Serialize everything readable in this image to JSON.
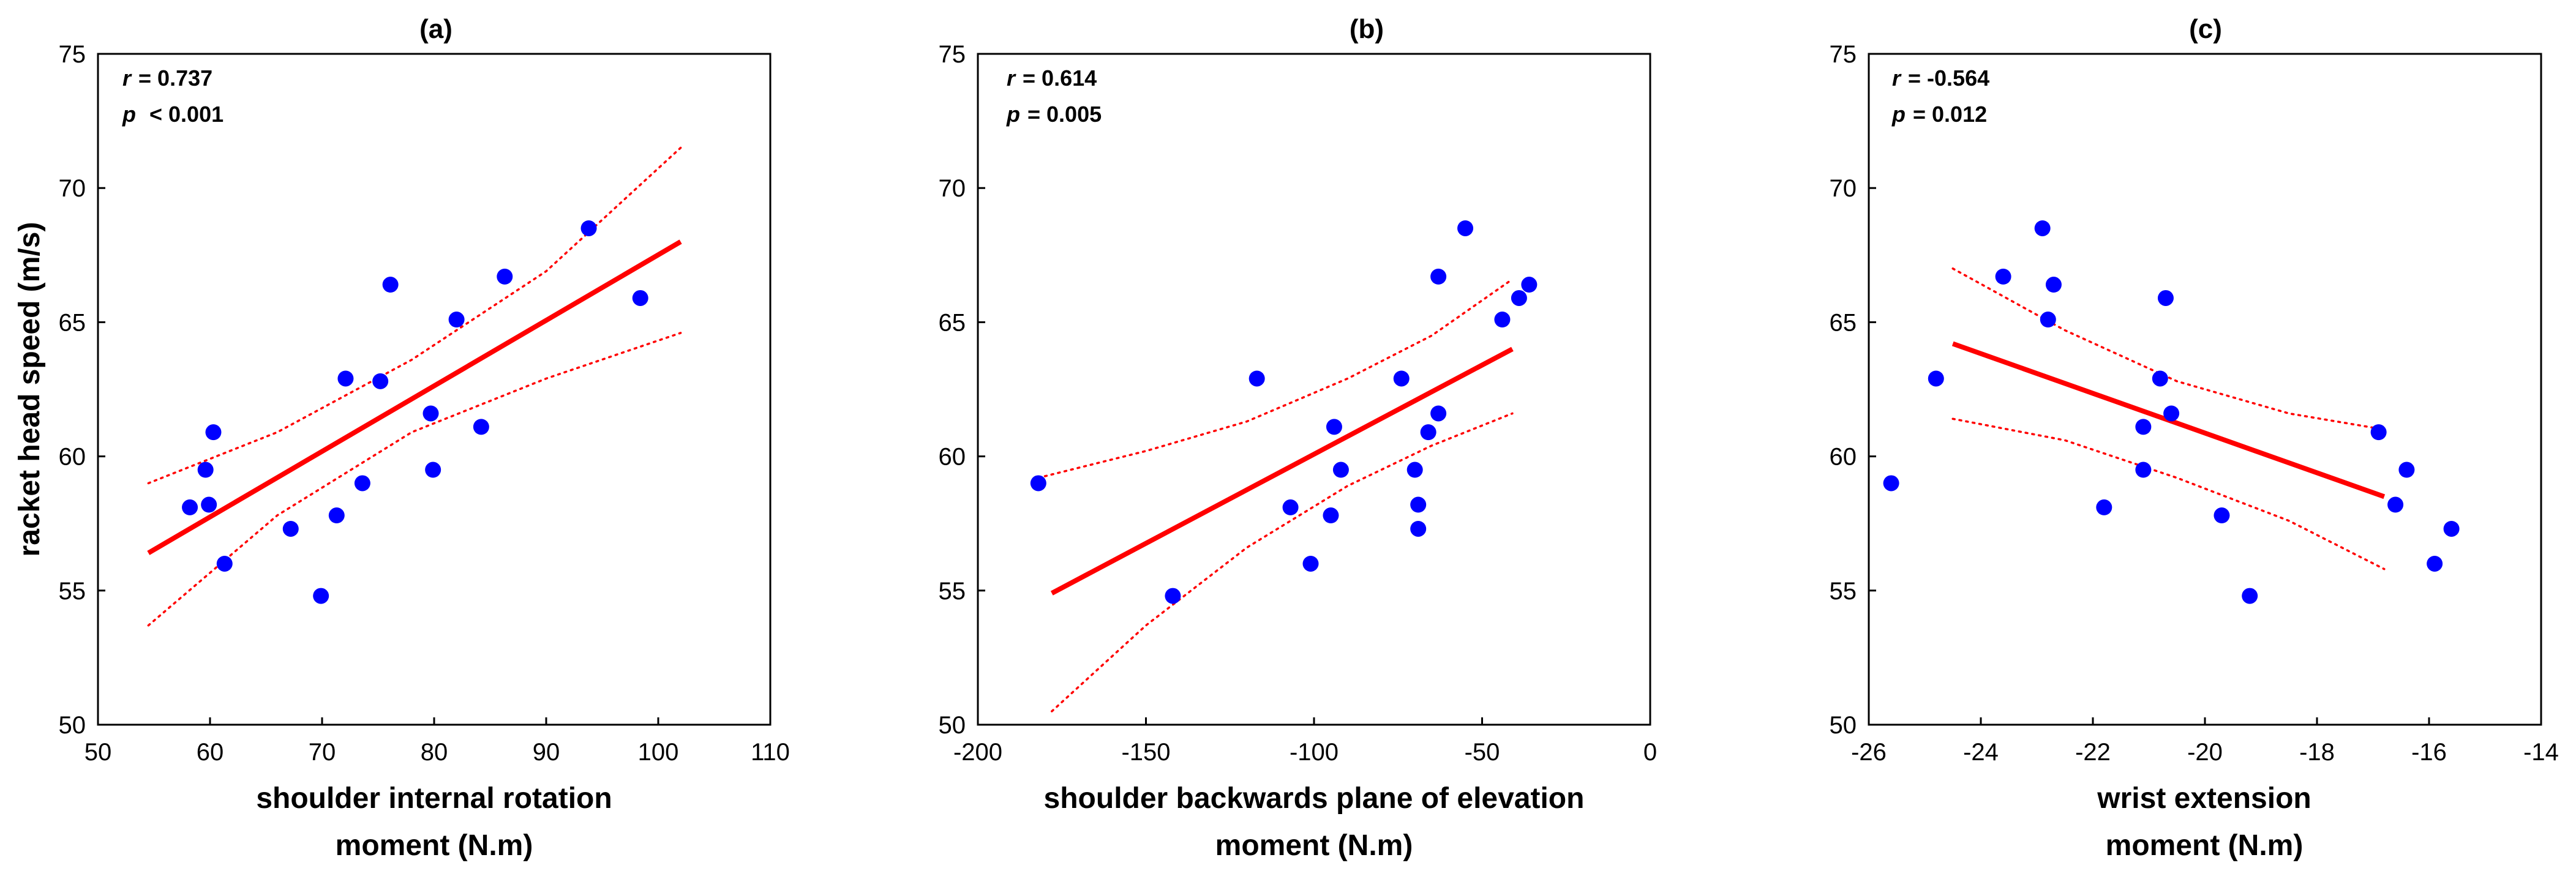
{
  "chart_data": [
    {
      "type": "scatter",
      "title": "(a)",
      "xlabel": [
        "shoulder internal rotation",
        "moment (N.m)"
      ],
      "ylabel": "racket head speed (m/s)",
      "xlim": [
        50,
        110
      ],
      "ylim": [
        50,
        75
      ],
      "xticks": [
        50,
        60,
        70,
        80,
        90,
        100,
        110
      ],
      "yticks": [
        50,
        55,
        60,
        65,
        70,
        75
      ],
      "stats": {
        "r_label": "r",
        "r_text": "= 0.737",
        "p_label": "p",
        "p_text": "< 0.001"
      },
      "points": [
        {
          "x": 58.2,
          "y": 58.1
        },
        {
          "x": 59.6,
          "y": 59.5
        },
        {
          "x": 59.9,
          "y": 58.2
        },
        {
          "x": 60.3,
          "y": 60.9
        },
        {
          "x": 61.3,
          "y": 56.0
        },
        {
          "x": 67.2,
          "y": 57.3
        },
        {
          "x": 69.9,
          "y": 54.8
        },
        {
          "x": 71.3,
          "y": 57.8
        },
        {
          "x": 72.1,
          "y": 62.9
        },
        {
          "x": 73.6,
          "y": 59.0
        },
        {
          "x": 75.2,
          "y": 62.8
        },
        {
          "x": 76.1,
          "y": 66.4
        },
        {
          "x": 79.7,
          "y": 61.6
        },
        {
          "x": 79.9,
          "y": 59.5
        },
        {
          "x": 82.0,
          "y": 65.1
        },
        {
          "x": 84.2,
          "y": 61.1
        },
        {
          "x": 86.3,
          "y": 66.7
        },
        {
          "x": 93.8,
          "y": 68.5
        },
        {
          "x": 98.4,
          "y": 65.9
        }
      ],
      "fit": {
        "x": [
          54.5,
          102.0
        ],
        "y": [
          56.4,
          68.0
        ]
      },
      "ci_upper": {
        "x": [
          54.5,
          66,
          78,
          90,
          102
        ],
        "y": [
          59.0,
          60.9,
          63.6,
          66.9,
          71.5
        ]
      },
      "ci_lower": {
        "x": [
          54.5,
          66,
          78,
          90,
          102
        ],
        "y": [
          53.7,
          57.8,
          60.9,
          62.9,
          64.6
        ]
      }
    },
    {
      "type": "scatter",
      "title": "(b)",
      "xlabel": [
        "shoulder backwards plane of elevation",
        "moment (N.m)"
      ],
      "ylabel": "",
      "xlim": [
        -200,
        0
      ],
      "ylim": [
        50,
        75
      ],
      "xticks": [
        -200,
        -150,
        -100,
        -50,
        0
      ],
      "yticks": [
        50,
        55,
        60,
        65,
        70,
        75
      ],
      "stats": {
        "r_label": "r",
        "r_text": "= 0.614",
        "p_label": "p",
        "p_text": "= 0.005"
      },
      "points": [
        {
          "x": -182,
          "y": 59.0
        },
        {
          "x": -142,
          "y": 54.8
        },
        {
          "x": -117,
          "y": 62.9
        },
        {
          "x": -107,
          "y": 58.1
        },
        {
          "x": -101,
          "y": 56.0
        },
        {
          "x": -95,
          "y": 57.8
        },
        {
          "x": -94,
          "y": 61.1
        },
        {
          "x": -92,
          "y": 59.5
        },
        {
          "x": -74,
          "y": 62.9
        },
        {
          "x": -70,
          "y": 59.5
        },
        {
          "x": -69,
          "y": 58.2
        },
        {
          "x": -69,
          "y": 57.3
        },
        {
          "x": -66,
          "y": 60.9
        },
        {
          "x": -63,
          "y": 61.6
        },
        {
          "x": -63,
          "y": 66.7
        },
        {
          "x": -55,
          "y": 68.5
        },
        {
          "x": -44,
          "y": 65.1
        },
        {
          "x": -39,
          "y": 65.9
        },
        {
          "x": -36,
          "y": 66.4
        }
      ],
      "fit": {
        "x": [
          -178,
          -41
        ],
        "y": [
          54.9,
          64.0
        ]
      },
      "ci_upper": {
        "x": [
          -182,
          -150,
          -120,
          -90,
          -65,
          -41
        ],
        "y": [
          59.2,
          60.2,
          61.3,
          62.9,
          64.5,
          66.6
        ]
      },
      "ci_lower": {
        "x": [
          -178,
          -150,
          -120,
          -90,
          -65,
          -41
        ],
        "y": [
          50.5,
          53.7,
          56.6,
          58.9,
          60.4,
          61.6
        ]
      }
    },
    {
      "type": "scatter",
      "title": "(c)",
      "xlabel": [
        "wrist extension",
        "moment (N.m)"
      ],
      "ylabel": "",
      "xlim": [
        -26,
        -14
      ],
      "ylim": [
        50,
        75
      ],
      "xticks": [
        -26,
        -24,
        -22,
        -20,
        -18,
        -16,
        -14
      ],
      "yticks": [
        50,
        55,
        60,
        65,
        70,
        75
      ],
      "stats": {
        "r_label": "r",
        "r_text": "= -0.564",
        "p_label": "p",
        "p_text": "= 0.012"
      },
      "points": [
        {
          "x": -25.6,
          "y": 59.0
        },
        {
          "x": -24.8,
          "y": 62.9
        },
        {
          "x": -23.6,
          "y": 66.7
        },
        {
          "x": -22.9,
          "y": 68.5
        },
        {
          "x": -22.8,
          "y": 65.1
        },
        {
          "x": -22.7,
          "y": 66.4
        },
        {
          "x": -21.8,
          "y": 58.1
        },
        {
          "x": -21.1,
          "y": 61.1
        },
        {
          "x": -21.1,
          "y": 59.5
        },
        {
          "x": -20.8,
          "y": 62.9
        },
        {
          "x": -20.7,
          "y": 65.9
        },
        {
          "x": -20.6,
          "y": 61.6
        },
        {
          "x": -19.7,
          "y": 57.8
        },
        {
          "x": -19.2,
          "y": 54.8
        },
        {
          "x": -16.9,
          "y": 60.9
        },
        {
          "x": -16.6,
          "y": 58.2
        },
        {
          "x": -16.4,
          "y": 59.5
        },
        {
          "x": -15.9,
          "y": 56.0
        },
        {
          "x": -15.6,
          "y": 57.3
        }
      ],
      "fit": {
        "x": [
          -24.5,
          -16.8
        ],
        "y": [
          64.2,
          58.5
        ]
      },
      "ci_upper": {
        "x": [
          -24.5,
          -22.5,
          -20.5,
          -18.5,
          -16.8
        ],
        "y": [
          67.0,
          64.7,
          62.8,
          61.6,
          61.0
        ]
      },
      "ci_lower": {
        "x": [
          -24.5,
          -22.5,
          -20.5,
          -18.5,
          -16.8
        ],
        "y": [
          61.4,
          60.6,
          59.2,
          57.6,
          55.8
        ]
      }
    }
  ],
  "colors": {
    "points": "#0000ff",
    "fit": "#ff0000",
    "ci": "#ff0000",
    "axis": "#000000"
  }
}
